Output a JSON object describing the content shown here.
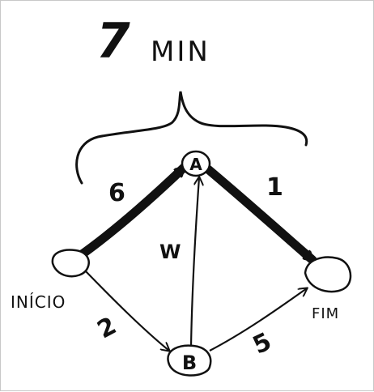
{
  "title": {
    "number": "7",
    "unit": "MIN"
  },
  "nodes": {
    "a": "A",
    "b": "B",
    "start": "INÍCIO",
    "end": "FIM"
  },
  "edges": {
    "start_a": "6",
    "a_end": "1",
    "b_a": "W",
    "start_b": "2",
    "b_end": "5"
  },
  "colors": {
    "ink": "#111111",
    "background": "#ffffff",
    "border": "#c8c8c8"
  }
}
